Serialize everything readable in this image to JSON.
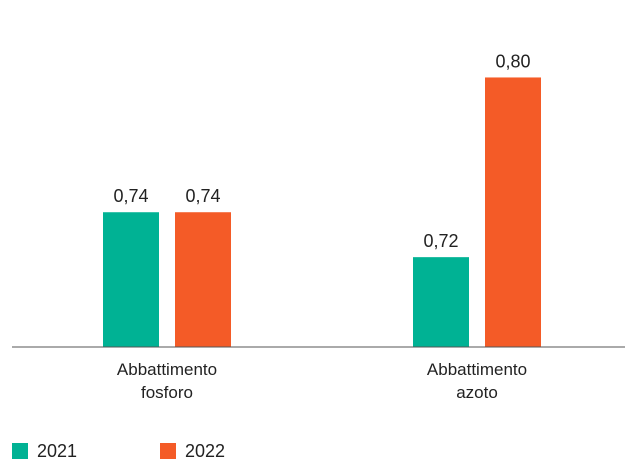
{
  "chart_data": {
    "type": "bar",
    "categories": [
      [
        "Abbattimento",
        "fosforo"
      ],
      [
        "Abbattimento",
        "azoto"
      ]
    ],
    "series": [
      {
        "name": "2021",
        "color": "#00b294",
        "values": [
          0.74,
          0.72
        ],
        "labels": [
          "0,74",
          "0,72"
        ]
      },
      {
        "name": "2022",
        "color": "#f45b27",
        "values": [
          0.74,
          0.8
        ],
        "labels": [
          "0,74",
          "0,80"
        ]
      }
    ],
    "title": "",
    "xlabel": "",
    "ylabel": "",
    "ylim": [
      0.68,
      0.81
    ],
    "grid": false,
    "legend_position": "bottom-left"
  }
}
